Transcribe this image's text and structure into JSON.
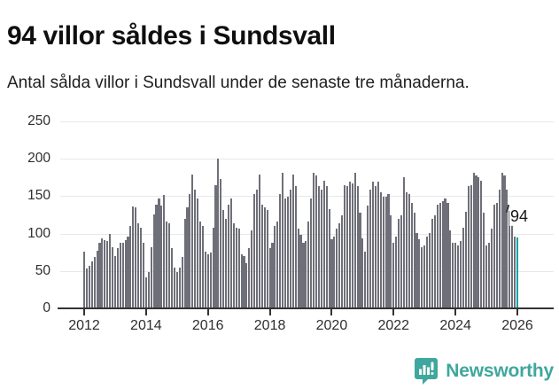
{
  "header": {
    "title": "94 villor såldes i Sundsvall",
    "subtitle": "Antal sålda villor i Sundsvall under de senaste tre månaderna."
  },
  "chart_data": {
    "type": "bar",
    "title": "94 villor såldes i Sundsvall",
    "subtitle": "Antal sålda villor i Sundsvall under de senaste tre månaderna.",
    "xlabel": "",
    "ylabel": "",
    "ylim": [
      0,
      250
    ],
    "y_ticks": [
      0,
      50,
      100,
      150,
      200,
      250
    ],
    "x_start_year": 2012,
    "x_tick_labels": [
      "2012",
      "2014",
      "2016",
      "2018",
      "2020",
      "2022",
      "2024",
      "2026"
    ],
    "frequency": "monthly",
    "grid": true,
    "legend": "none",
    "bar_color": "#6f6f79",
    "highlight_color": "#00a3a1",
    "annotation_label": "94",
    "highlight_last_value": 94,
    "values_by_year": {
      "2012": [
        75,
        52,
        56,
        62,
        67,
        76,
        87,
        93,
        90,
        89,
        98,
        80
      ],
      "2013": [
        69,
        79,
        87,
        86,
        90,
        95,
        109,
        135,
        134,
        113,
        107,
        87
      ],
      "2014": [
        40,
        48,
        80,
        125,
        138,
        146,
        136,
        150,
        115,
        113,
        79,
        53
      ],
      "2015": [
        47,
        53,
        67,
        119,
        134,
        152,
        178,
        158,
        146,
        115,
        109,
        75
      ],
      "2016": [
        71,
        73,
        107,
        164,
        199,
        172,
        130,
        119,
        137,
        146,
        113,
        107
      ],
      "2017": [
        105,
        71,
        69,
        59,
        79,
        103,
        152,
        158,
        178,
        138,
        134,
        130
      ],
      "2018": [
        79,
        87,
        109,
        115,
        152,
        180,
        146,
        148,
        158,
        178,
        162,
        105
      ],
      "2019": [
        97,
        87,
        89,
        115,
        146,
        180,
        176,
        162,
        158,
        170,
        162,
        132
      ],
      "2020": [
        91,
        95,
        105,
        113,
        123,
        164,
        162,
        168,
        166,
        180,
        162,
        127
      ],
      "2021": [
        93,
        75,
        136,
        158,
        168,
        162,
        168,
        154,
        148,
        148,
        152,
        123
      ],
      "2022": [
        87,
        95,
        119,
        123,
        174,
        154,
        152,
        140,
        127,
        99,
        91,
        81
      ],
      "2023": [
        83,
        95,
        99,
        119,
        123,
        138,
        140,
        142,
        146,
        140,
        103,
        87
      ],
      "2024": [
        87,
        83,
        89,
        107,
        128,
        162,
        164,
        180,
        176,
        174,
        170,
        127
      ],
      "2025": [
        83,
        87,
        105,
        138,
        140,
        158,
        180,
        176,
        158,
        129,
        110,
        95
      ],
      "2026": [
        94
      ]
    }
  },
  "footer": {
    "brand": "Newsworthy",
    "brand_color": "#3fa79d",
    "logo_icon": "newsworthy-speech-bubble-bar-chart-icon"
  }
}
